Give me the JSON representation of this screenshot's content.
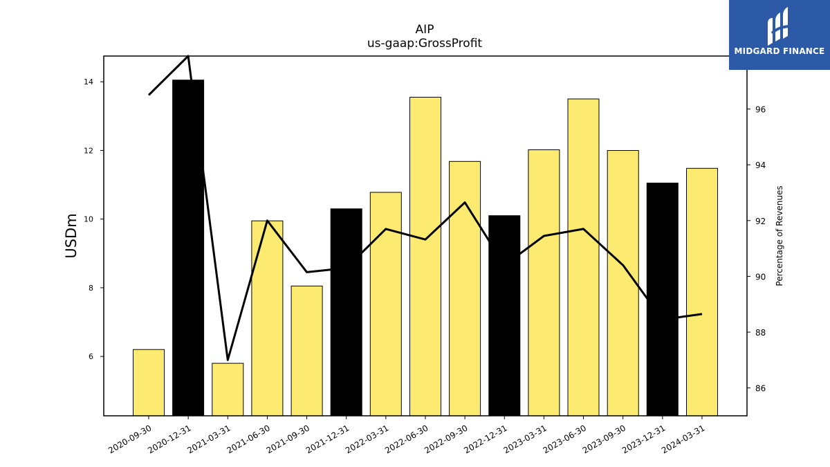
{
  "logo": {
    "text": "MIDGARD FINANCE",
    "icon": "midgard-logo-icon",
    "background_color": "#2c5aa6"
  },
  "chart_data": {
    "type": "bar",
    "title": "AIP",
    "subtitle": "us-gaap:GrossProfit",
    "ylabel": "USDm",
    "y2label": "Percentage of Revenues",
    "categories": [
      "2020-09-30",
      "2020-12-31",
      "2021-03-31",
      "2021-06-30",
      "2021-09-30",
      "2021-12-31",
      "2022-03-31",
      "2022-06-30",
      "2022-09-30",
      "2022-12-31",
      "2023-03-31",
      "2023-06-30",
      "2023-09-30",
      "2023-12-31",
      "2024-03-31"
    ],
    "series": [
      {
        "type": "bar",
        "axis": "left",
        "values": [
          6.2,
          14.05,
          5.8,
          9.95,
          8.05,
          10.3,
          10.78,
          13.55,
          11.68,
          10.1,
          12.02,
          13.5,
          12.0,
          11.05,
          11.48
        ],
        "colors": [
          "#fdeb71",
          "#000000",
          "#fdeb71",
          "#fdeb71",
          "#fdeb71",
          "#000000",
          "#fdeb71",
          "#fdeb71",
          "#fdeb71",
          "#000000",
          "#fdeb71",
          "#fdeb71",
          "#fdeb71",
          "#000000",
          "#fdeb71"
        ]
      },
      {
        "type": "line",
        "axis": "right",
        "color": "#000000",
        "values": [
          96.5,
          97.9,
          87.0,
          92.0,
          90.15,
          90.3,
          91.7,
          91.32,
          92.65,
          90.4,
          91.45,
          91.7,
          90.4,
          88.45,
          88.65
        ]
      }
    ],
    "ylim": [
      4.27,
      14.75
    ],
    "y2lim": [
      85.0,
      97.9
    ],
    "yticks": [
      "6",
      "8",
      "10",
      "12",
      "14"
    ],
    "y2ticks": [
      "86",
      "88",
      "90",
      "92",
      "94",
      "96"
    ],
    "colors": {
      "quarter": "#fdeb71",
      "year_end": "#000000"
    },
    "grid": false,
    "legend": "none"
  }
}
